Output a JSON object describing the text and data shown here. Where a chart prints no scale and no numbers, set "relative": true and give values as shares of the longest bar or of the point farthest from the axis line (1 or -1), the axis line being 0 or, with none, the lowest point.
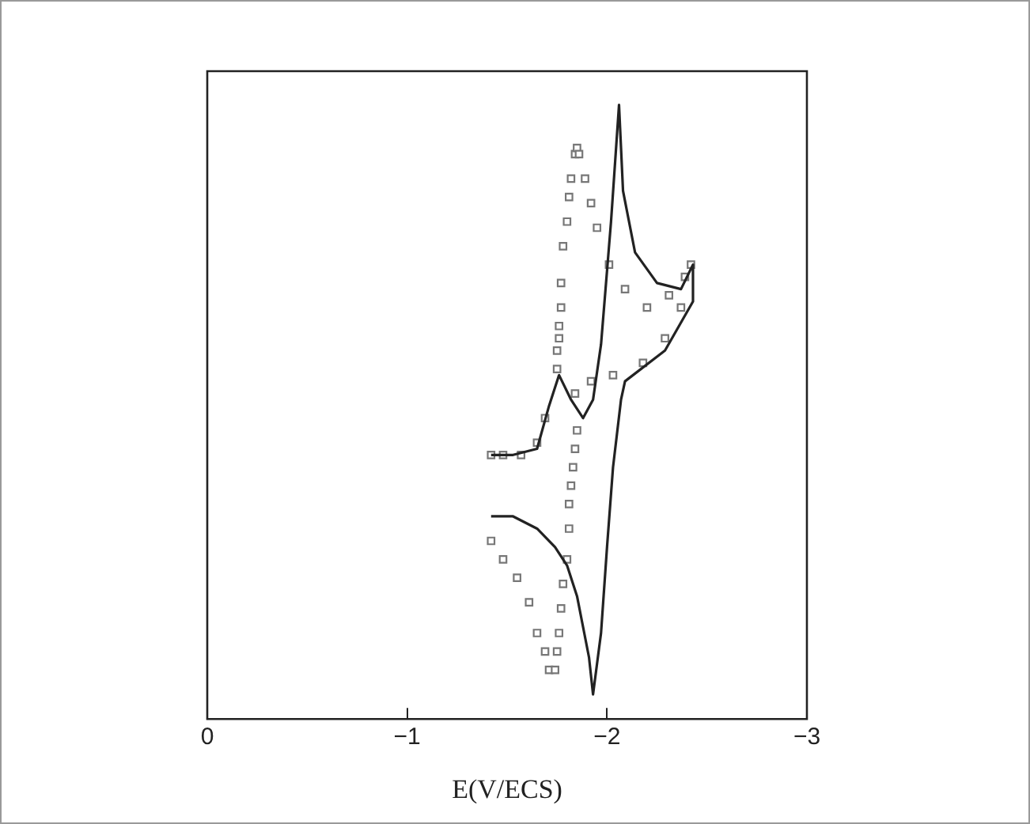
{
  "chart_data": {
    "type": "line",
    "xlabel": "E(V/ECS)",
    "relative": true,
    "xlim": [
      0,
      -3
    ],
    "xticks": [
      0,
      {
        "value": -1,
        "label": "−1"
      },
      {
        "value": -2,
        "label": "−2"
      },
      {
        "value": -3,
        "label": "−3"
      }
    ],
    "legend": false,
    "grid": false,
    "series": [
      {
        "type": "line",
        "color": "#222222",
        "marker": "none",
        "line_style": "solid",
        "x": [
          -1.42,
          -1.53,
          -1.65,
          -1.74,
          -1.8,
          -1.85,
          -1.88,
          -1.91,
          -1.93,
          -1.97,
          -2.0,
          -2.03,
          -2.07,
          -2.09,
          -2.29,
          -2.43,
          -2.43,
          -2.37,
          -2.25,
          -2.14,
          -2.08,
          -2.06,
          -2.02,
          -1.97,
          -1.93,
          -1.88,
          -1.82,
          -1.76,
          -1.71,
          -1.65,
          -1.53,
          -1.42
        ],
        "values": [
          0.33,
          0.33,
          0.31,
          0.28,
          0.25,
          0.2,
          0.15,
          0.1,
          0.04,
          0.14,
          0.28,
          0.41,
          0.52,
          0.55,
          0.6,
          0.68,
          0.74,
          0.7,
          0.71,
          0.76,
          0.86,
          1.0,
          0.81,
          0.61,
          0.52,
          0.49,
          0.52,
          0.56,
          0.51,
          0.44,
          0.43,
          0.43
        ]
      },
      {
        "type": "scatter",
        "color": "#777777",
        "marker": "square",
        "x": [
          -1.42,
          -1.48,
          -1.55,
          -1.61,
          -1.65,
          -1.69,
          -1.71,
          -1.74,
          -1.75,
          -1.76,
          -1.77,
          -1.78,
          -1.8,
          -1.81,
          -1.81,
          -1.82,
          -1.83,
          -1.84,
          -1.85,
          -1.75,
          -1.75,
          -1.76,
          -1.76,
          -1.77,
          -1.77,
          -1.78,
          -1.8,
          -1.81,
          -1.82,
          -1.84,
          -1.85,
          -1.86,
          -1.89,
          -1.92,
          -1.95,
          -2.01,
          -2.09,
          -2.2,
          -2.31,
          -2.39,
          -2.42,
          -2.37,
          -2.29,
          -2.18,
          -2.03,
          -1.92,
          -1.84,
          -1.69,
          -1.65,
          -1.57,
          -1.48,
          -1.42
        ],
        "values": [
          0.29,
          0.26,
          0.23,
          0.19,
          0.14,
          0.11,
          0.08,
          0.08,
          0.11,
          0.14,
          0.18,
          0.22,
          0.26,
          0.31,
          0.35,
          0.38,
          0.41,
          0.44,
          0.47,
          0.57,
          0.6,
          0.62,
          0.64,
          0.67,
          0.71,
          0.77,
          0.81,
          0.85,
          0.88,
          0.92,
          0.93,
          0.92,
          0.88,
          0.84,
          0.8,
          0.74,
          0.7,
          0.67,
          0.69,
          0.72,
          0.74,
          0.67,
          0.62,
          0.58,
          0.56,
          0.55,
          0.53,
          0.49,
          0.45,
          0.43,
          0.43,
          0.43
        ]
      }
    ]
  }
}
